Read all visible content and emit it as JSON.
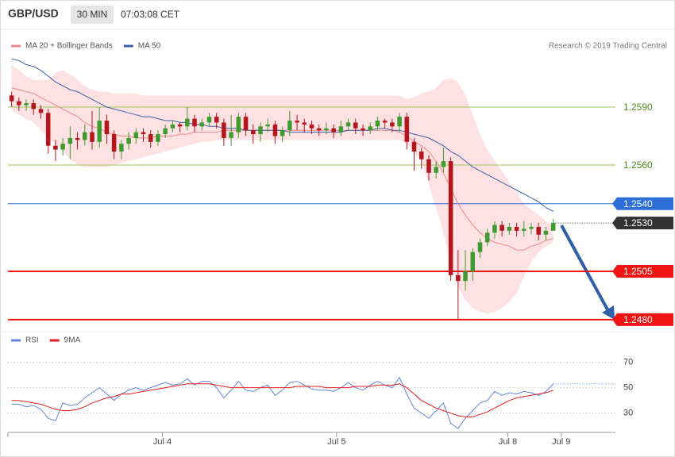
{
  "header": {
    "symbol": "GBP/USD",
    "interval": "30 MIN",
    "time": "07:03:08 CET"
  },
  "chart_data": [
    {
      "type": "candlestick",
      "source": "Research © 2019 Trading Central",
      "up_color": "#3f9a2f",
      "down_color": "#b5161b",
      "ylim": [
        1.2475,
        1.2629
      ],
      "open": [
        1.2596,
        1.2593,
        1.2591,
        1.2592,
        1.2589,
        1.2587,
        1.257,
        1.2568,
        1.2571,
        1.2574,
        1.2573,
        1.2577,
        1.2572,
        1.2583,
        1.2576,
        1.2567,
        1.2571,
        1.2574,
        1.2577,
        1.2576,
        1.2572,
        1.2576,
        1.2579,
        1.2581,
        1.258,
        1.2584,
        1.258,
        1.2582,
        1.2585,
        1.2582,
        1.2574,
        1.2577,
        1.2585,
        1.2578,
        1.2576,
        1.258,
        1.2581,
        1.2575,
        1.2578,
        1.2583,
        1.2582,
        1.2581,
        1.2579,
        1.2578,
        1.2579,
        1.2577,
        1.258,
        1.2582,
        1.2579,
        1.2578,
        1.258,
        1.2583,
        1.2582,
        1.258,
        1.2585,
        1.2572,
        1.2567,
        1.2563,
        1.2556,
        1.2559,
        1.2562,
        1.2503,
        1.25,
        1.2505,
        1.2515,
        1.252,
        1.2525,
        1.2529,
        1.2526,
        1.2528,
        1.2526,
        1.2527,
        1.2528,
        1.2524,
        1.2526
      ],
      "high": [
        1.2598,
        1.2595,
        1.2594,
        1.2594,
        1.2591,
        1.2589,
        1.2573,
        1.2574,
        1.258,
        1.2577,
        1.2581,
        1.2588,
        1.259,
        1.2586,
        1.2578,
        1.2573,
        1.2577,
        1.2579,
        1.2579,
        1.2578,
        1.2578,
        1.2581,
        1.2583,
        1.2582,
        1.259,
        1.2586,
        1.2584,
        1.2587,
        1.2587,
        1.2584,
        1.2586,
        1.2587,
        1.2587,
        1.2581,
        1.2582,
        1.2584,
        1.2583,
        1.258,
        1.2588,
        1.2586,
        1.2584,
        1.2583,
        1.2581,
        1.2582,
        1.2581,
        1.2583,
        1.2584,
        1.2584,
        1.2581,
        1.2582,
        1.2585,
        1.2584,
        1.2584,
        1.2587,
        1.2587,
        1.2574,
        1.2569,
        1.2565,
        1.2562,
        1.2569,
        1.2564,
        1.2516,
        1.2516,
        1.2517,
        1.2522,
        1.2527,
        1.2531,
        1.2531,
        1.253,
        1.253,
        1.2531,
        1.253,
        1.253,
        1.2528,
        1.2532
      ],
      "low": [
        1.259,
        1.2588,
        1.2588,
        1.2586,
        1.2584,
        1.2566,
        1.2562,
        1.2565,
        1.2563,
        1.2568,
        1.257,
        1.2568,
        1.2569,
        1.2571,
        1.2563,
        1.2563,
        1.2568,
        1.2571,
        1.2572,
        1.2569,
        1.257,
        1.2574,
        1.2577,
        1.2577,
        1.2578,
        1.2577,
        1.2578,
        1.258,
        1.2579,
        1.257,
        1.257,
        1.2574,
        1.2575,
        1.2571,
        1.2572,
        1.2577,
        1.2571,
        1.2572,
        1.2575,
        1.2578,
        1.2577,
        1.2576,
        1.2575,
        1.2576,
        1.2574,
        1.2575,
        1.2578,
        1.2576,
        1.2575,
        1.2576,
        1.2578,
        1.2579,
        1.2577,
        1.2577,
        1.2568,
        1.2557,
        1.2558,
        1.2552,
        1.2553,
        1.2556,
        1.25,
        1.248,
        1.2495,
        1.25,
        1.2512,
        1.2518,
        1.2522,
        1.2523,
        1.2524,
        1.2523,
        1.2523,
        1.2524,
        1.2521,
        1.2521,
        1.2527
      ],
      "close": [
        1.2593,
        1.2591,
        1.2592,
        1.2589,
        1.2587,
        1.257,
        1.2568,
        1.2571,
        1.2574,
        1.2573,
        1.2577,
        1.2572,
        1.2583,
        1.2576,
        1.2567,
        1.2571,
        1.2574,
        1.2577,
        1.2576,
        1.2572,
        1.2576,
        1.2579,
        1.2581,
        1.258,
        1.2584,
        1.258,
        1.2582,
        1.2585,
        1.2582,
        1.2574,
        1.2577,
        1.2585,
        1.2578,
        1.2576,
        1.258,
        1.2581,
        1.2575,
        1.2578,
        1.2583,
        1.2582,
        1.2581,
        1.2579,
        1.2578,
        1.2579,
        1.2577,
        1.258,
        1.2582,
        1.2579,
        1.2578,
        1.258,
        1.2583,
        1.2582,
        1.258,
        1.2585,
        1.2572,
        1.2567,
        1.2563,
        1.2556,
        1.2559,
        1.2562,
        1.2503,
        1.25,
        1.2505,
        1.2515,
        1.252,
        1.2525,
        1.2529,
        1.2526,
        1.2528,
        1.2526,
        1.2527,
        1.2528,
        1.2524,
        1.2526,
        1.253
      ],
      "series": [
        {
          "name": "MA 20 + Bollinger Bands",
          "color": "#f08a8a",
          "band_color": "#fde1e3",
          "values": [
            1.26,
            1.2599,
            1.2598,
            1.2597,
            1.2595,
            1.2593,
            1.2591,
            1.2589,
            1.2587,
            1.2585,
            1.2582,
            1.258,
            1.2579,
            1.2577,
            1.2576,
            1.2575,
            1.2575,
            1.2574,
            1.2574,
            1.2574,
            1.2575,
            1.2575,
            1.2575,
            1.2576,
            1.2576,
            1.2577,
            1.2577,
            1.2577,
            1.2577,
            1.2578,
            1.2578,
            1.2578,
            1.2578,
            1.2578,
            1.2578,
            1.2578,
            1.2578,
            1.2578,
            1.2578,
            1.2578,
            1.2578,
            1.2578,
            1.2578,
            1.2578,
            1.2578,
            1.2578,
            1.2578,
            1.2578,
            1.2578,
            1.2578,
            1.2578,
            1.2578,
            1.2578,
            1.2577,
            1.2575,
            1.2572,
            1.257,
            1.2567,
            1.2562,
            1.2556,
            1.2548,
            1.254,
            1.2534,
            1.2529,
            1.2525,
            1.2522,
            1.252,
            1.2519,
            1.2518,
            1.2516,
            1.2516,
            1.2518,
            1.2519,
            1.2521,
            1.2522
          ],
          "upper": [
            1.2612,
            1.2609,
            1.2606,
            1.2604,
            1.2604,
            1.2604,
            1.2608,
            1.2609,
            1.2607,
            1.2604,
            1.2601,
            1.2599,
            1.2598,
            1.2598,
            1.2597,
            1.2597,
            1.2597,
            1.2597,
            1.2596,
            1.2596,
            1.2596,
            1.2596,
            1.2596,
            1.2596,
            1.2596,
            1.2596,
            1.2596,
            1.2596,
            1.2596,
            1.2596,
            1.2596,
            1.2596,
            1.2596,
            1.2596,
            1.2596,
            1.2596,
            1.2596,
            1.2596,
            1.2596,
            1.2596,
            1.2596,
            1.2596,
            1.2596,
            1.2596,
            1.2596,
            1.2596,
            1.2596,
            1.2596,
            1.2596,
            1.2596,
            1.2596,
            1.2596,
            1.2596,
            1.2596,
            1.2594,
            1.2595,
            1.2597,
            1.2598,
            1.26,
            1.2604,
            1.2605,
            1.2603,
            1.2596,
            1.2586,
            1.2576,
            1.2568,
            1.2562,
            1.2557,
            1.2551,
            1.2545,
            1.254,
            1.2537,
            1.2534,
            1.2531,
            1.2528
          ],
          "lower": [
            1.2588,
            1.2586,
            1.2584,
            1.2582,
            1.2578,
            1.2574,
            1.2571,
            1.2567,
            1.2563,
            1.256,
            1.2559,
            1.2559,
            1.2559,
            1.2559,
            1.256,
            1.2561,
            1.2562,
            1.2563,
            1.2564,
            1.2565,
            1.2566,
            1.2567,
            1.2568,
            1.2569,
            1.257,
            1.2571,
            1.2572,
            1.2572,
            1.2573,
            1.2573,
            1.2573,
            1.2573,
            1.2573,
            1.2573,
            1.2573,
            1.2573,
            1.2573,
            1.2573,
            1.2573,
            1.2573,
            1.2573,
            1.2573,
            1.2573,
            1.2573,
            1.2573,
            1.2573,
            1.2573,
            1.2573,
            1.2573,
            1.2573,
            1.2573,
            1.2573,
            1.2573,
            1.2573,
            1.2571,
            1.2566,
            1.2562,
            1.255,
            1.2538,
            1.2525,
            1.251,
            1.2497,
            1.249,
            1.2486,
            1.2484,
            1.2483,
            1.2484,
            1.2486,
            1.2489,
            1.2494,
            1.2502,
            1.251,
            1.2515,
            1.2518,
            1.252
          ]
        },
        {
          "name": "MA 50",
          "color": "#3b5ea7",
          "values": [
            1.2615,
            1.2614,
            1.2612,
            1.2611,
            1.2609,
            1.2606,
            1.2603,
            1.2601,
            1.2599,
            1.2598,
            1.2596,
            1.2594,
            1.2592,
            1.259,
            1.2589,
            1.2588,
            1.2587,
            1.2586,
            1.2585,
            1.2585,
            1.2584,
            1.2583,
            1.2583,
            1.2582,
            1.2582,
            1.2581,
            1.2581,
            1.258,
            1.258,
            1.2579,
            1.2579,
            1.2579,
            1.2578,
            1.2578,
            1.2578,
            1.2578,
            1.2578,
            1.2578,
            1.2577,
            1.2577,
            1.2577,
            1.2577,
            1.2577,
            1.2577,
            1.2577,
            1.2577,
            1.2578,
            1.2578,
            1.2578,
            1.2578,
            1.2579,
            1.2579,
            1.2578,
            1.2578,
            1.2577,
            1.2576,
            1.2575,
            1.2574,
            1.2572,
            1.257,
            1.2567,
            1.2565,
            1.2562,
            1.2559,
            1.2557,
            1.2555,
            1.2553,
            1.2551,
            1.2549,
            1.2547,
            1.2545,
            1.2543,
            1.2541,
            1.2538,
            1.2536
          ]
        }
      ],
      "levels": [
        {
          "value": 1.259,
          "label": "1.2590",
          "color": "#9cc75a",
          "label_box": false,
          "dotted": false
        },
        {
          "value": 1.256,
          "label": "1.2560",
          "color": "#9cc75a",
          "label_box": false,
          "dotted": false
        },
        {
          "value": 1.254,
          "label": "1.2540",
          "color": "#2c6fd8",
          "label_box": true,
          "dotted": false
        },
        {
          "value": 1.253,
          "label": "1.2530",
          "color": "#333333",
          "label_box": true,
          "dotted": true
        },
        {
          "value": 1.2505,
          "label": "1.2505",
          "color": "#f01414",
          "label_box": true,
          "dotted": false
        },
        {
          "value": 1.248,
          "label": "1.2480",
          "color": "#f01414",
          "label_box": true,
          "dotted": false
        }
      ]
    },
    {
      "type": "line",
      "ylim": [
        18,
        89
      ],
      "yticks": [
        30,
        50,
        70
      ],
      "grid": true,
      "xticks": [
        {
          "value": 20.6,
          "label": "Jul 4"
        },
        {
          "value": 44.4,
          "label": "Jul 5"
        },
        {
          "value": 67.8,
          "label": "Jul 8"
        },
        {
          "value": 75.1,
          "label": "Jul 9"
        }
      ],
      "series": [
        {
          "name": "RSI",
          "color": "#6384dc",
          "values": [
            37,
            37,
            35,
            36,
            33,
            26,
            24,
            38,
            36,
            37,
            42,
            46,
            50,
            45,
            40,
            45,
            48,
            50,
            48,
            50,
            52,
            54,
            52,
            53,
            57,
            52,
            55,
            55,
            50,
            42,
            48,
            55,
            48,
            47,
            50,
            52,
            44,
            48,
            54,
            55,
            52,
            49,
            48,
            48,
            47,
            50,
            54,
            50,
            48,
            52,
            55,
            52,
            50,
            58,
            45,
            34,
            30,
            26,
            32,
            38,
            22,
            18,
            26,
            32,
            38,
            40,
            47,
            44,
            46,
            45,
            47,
            46,
            44,
            47,
            53
          ]
        },
        {
          "name": "9MA",
          "color": "#e41e1e",
          "values": [
            40,
            40,
            39,
            38,
            37,
            35,
            33,
            32,
            32,
            33,
            35,
            38,
            40,
            42,
            43,
            45,
            45,
            46,
            47,
            48,
            49,
            50,
            51,
            52,
            53,
            53,
            53,
            53,
            52,
            51,
            50,
            50,
            50,
            50,
            50,
            50,
            50,
            50,
            50,
            51,
            51,
            51,
            51,
            50,
            50,
            50,
            50,
            51,
            51,
            51,
            52,
            52,
            52,
            53,
            50,
            45,
            40,
            37,
            34,
            32,
            30,
            28,
            27,
            27,
            29,
            31,
            34,
            37,
            40,
            42,
            43,
            44,
            45,
            46,
            48
          ]
        }
      ]
    }
  ]
}
